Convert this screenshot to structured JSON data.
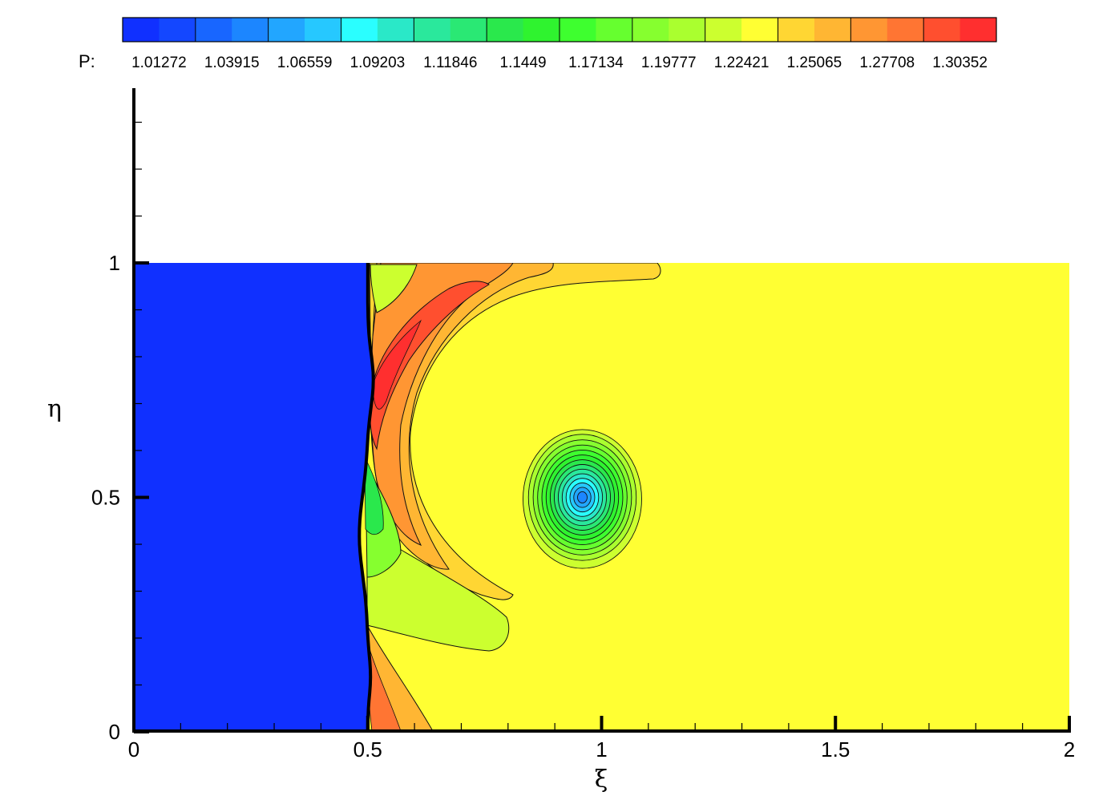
{
  "chart_data": {
    "type": "heatmap",
    "colorbar": {
      "variable_label": "P:",
      "tick_labels": [
        "1.01272",
        "1.03915",
        "1.06559",
        "1.09203",
        "1.11846",
        "1.1449",
        "1.17134",
        "1.19777",
        "1.22421",
        "1.25065",
        "1.27708",
        "1.30352"
      ],
      "colors": [
        "#1030ff",
        "#1447ff",
        "#1866ff",
        "#1c86ff",
        "#22a6ff",
        "#26c8ff",
        "#2afeff",
        "#2ae8c8",
        "#2ae89c",
        "#2ae874",
        "#2ae84c",
        "#2ff32f",
        "#3eff2f",
        "#66ff2f",
        "#86ff2f",
        "#aaff2f",
        "#ccff2f",
        "#ffff33",
        "#ffd633",
        "#ffb633",
        "#ff9633",
        "#ff7533",
        "#ff4f2f",
        "#ff2f2f"
      ]
    },
    "x_axis": {
      "title": "ξ",
      "range": [
        0,
        2
      ],
      "major_ticks": [
        0,
        0.5,
        1,
        1.5,
        2
      ],
      "tick_labels": [
        "0",
        "0.5",
        "1",
        "1.5",
        "2"
      ],
      "minor_step": 0.1
    },
    "y_axis": {
      "title": "η",
      "range": [
        0,
        1.3
      ],
      "major_ticks": [
        0,
        0.5,
        1
      ],
      "tick_labels": [
        "0",
        "0.5",
        "1"
      ],
      "minor_step": 0.1
    },
    "field": {
      "domain_x": [
        0,
        2
      ],
      "domain_y": [
        0,
        1
      ],
      "preshock_value": 1.01272,
      "postshock_value": 1.25065,
      "shock_x": 0.5,
      "vortex_center": [
        0.958,
        0.5
      ],
      "vortex_min_value": 1.09203
    }
  }
}
